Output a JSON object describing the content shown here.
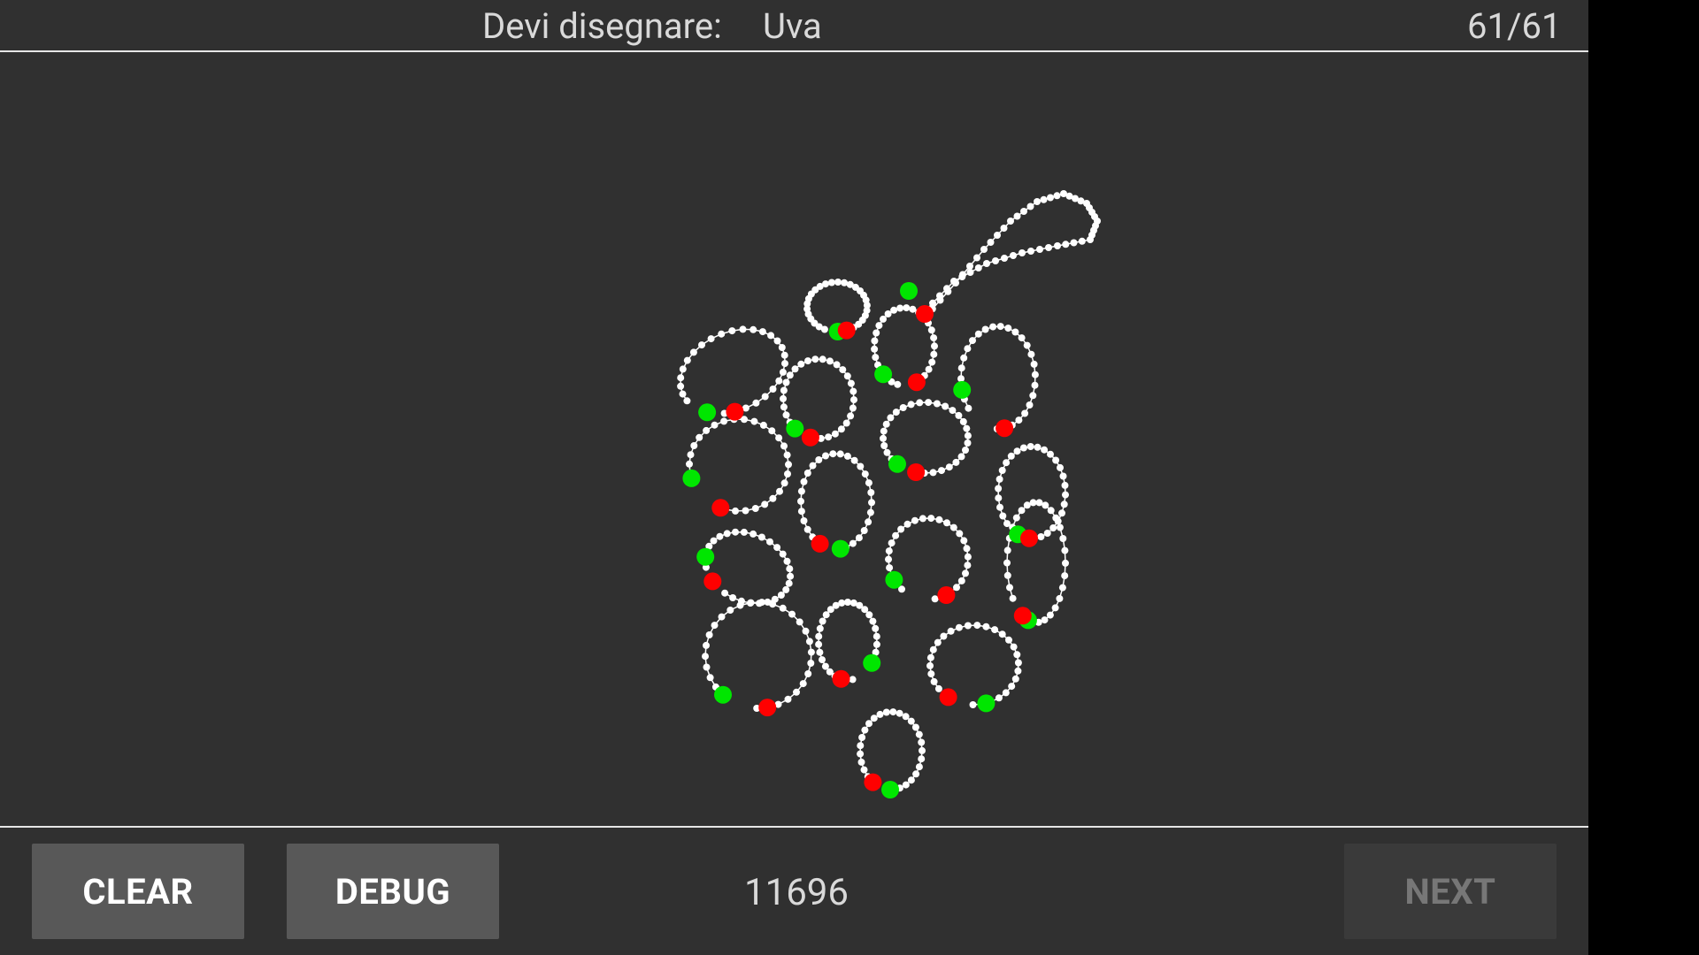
{
  "header": {
    "prompt_label": "Devi disegnare:",
    "target_word": "Uva",
    "progress": "61/61"
  },
  "footer": {
    "clear_label": "CLEAR",
    "debug_label": "DEBUG",
    "score": "11696",
    "next_label": "NEXT",
    "next_enabled": false
  },
  "colors": {
    "background": "#303030",
    "stroke": "#ffffff",
    "stroke_start": "#00e600",
    "stroke_end": "#ff0000",
    "button": "#585858",
    "button_disabled": "#3a3a3a"
  }
}
